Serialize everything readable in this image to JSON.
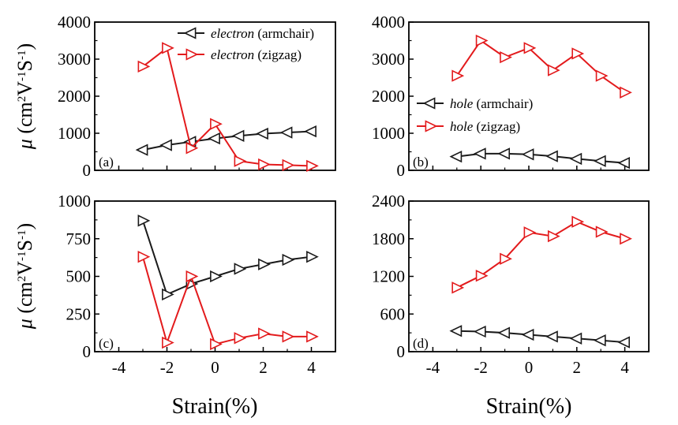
{
  "figure": {
    "ylabel_symbol": "μ",
    "ylabel_unit_open": " (cm",
    "ylabel_sup1": "2",
    "ylabel_mid": "V",
    "ylabel_sup2": "-1",
    "ylabel_end": "S",
    "ylabel_sup3": "-1",
    "ylabel_close": ")",
    "xlabel": "Strain(%)"
  },
  "colors": {
    "armchair": "#1a1a1a",
    "zigzag": "#e31a1c"
  },
  "chart_data": [
    {
      "type": "line",
      "panel_label": "(a)",
      "xlim": [
        -5,
        5
      ],
      "ylim": [
        0,
        4000
      ],
      "xticks": [
        -4,
        -2,
        0,
        2,
        4
      ],
      "yticks": [
        0,
        1000,
        2000,
        3000,
        4000
      ],
      "ytick_labels": [
        "0",
        "1000",
        "2000",
        "3000",
        "4000"
      ],
      "x_tick_labels_shown": false,
      "legend_position": "top-right",
      "series": [
        {
          "name_italic": "electron",
          "name_rest": " (armchair)",
          "color_key": "armchair",
          "marker": "triangle-left",
          "x": [
            -3,
            -2,
            -1,
            0,
            1,
            2,
            3,
            4
          ],
          "y": [
            550,
            680,
            770,
            860,
            930,
            990,
            1020,
            1050
          ]
        },
        {
          "name_italic": "electron",
          "name_rest": " (zigzag)",
          "color_key": "zigzag",
          "marker": "triangle-right",
          "x": [
            -3,
            -2,
            -1,
            0,
            1,
            2,
            3,
            4
          ],
          "y": [
            2800,
            3300,
            600,
            1250,
            250,
            160,
            140,
            120
          ]
        }
      ]
    },
    {
      "type": "line",
      "panel_label": "(b)",
      "xlim": [
        -5,
        5
      ],
      "ylim": [
        0,
        4000
      ],
      "xticks": [
        -4,
        -2,
        0,
        2,
        4
      ],
      "yticks": [
        0,
        1000,
        2000,
        3000,
        4000
      ],
      "ytick_labels": [
        "0",
        "1000",
        "2000",
        "3000",
        "4000"
      ],
      "x_tick_labels_shown": false,
      "legend_position": "center-left",
      "series": [
        {
          "name_italic": "hole",
          "name_rest": " (armchair)",
          "color_key": "armchair",
          "marker": "triangle-left",
          "x": [
            -3,
            -2,
            -1,
            0,
            1,
            2,
            3,
            4
          ],
          "y": [
            370,
            450,
            450,
            430,
            380,
            310,
            250,
            200
          ]
        },
        {
          "name_italic": "hole",
          "name_rest": " (zigzag)",
          "color_key": "zigzag",
          "marker": "triangle-right",
          "x": [
            -3,
            -2,
            -1,
            0,
            1,
            2,
            3,
            4
          ],
          "y": [
            2550,
            3500,
            3050,
            3300,
            2700,
            3150,
            2550,
            2100
          ]
        }
      ]
    },
    {
      "type": "line",
      "panel_label": "(c)",
      "xlim": [
        -5,
        5
      ],
      "ylim": [
        0,
        1000
      ],
      "xticks": [
        -4,
        -2,
        0,
        2,
        4
      ],
      "xtick_labels": [
        "-4",
        "-2",
        "0",
        "2",
        "4"
      ],
      "yticks": [
        0,
        250,
        500,
        750,
        1000
      ],
      "ytick_labels": [
        "0",
        "250",
        "500",
        "750",
        "1000"
      ],
      "x_tick_labels_shown": true,
      "series": [
        {
          "color_key": "armchair",
          "marker": "triangle-right",
          "x": [
            -3,
            -2,
            -1,
            0,
            1,
            2,
            3,
            4
          ],
          "y": [
            870,
            380,
            450,
            500,
            550,
            580,
            610,
            630
          ]
        },
        {
          "color_key": "zigzag",
          "marker": "triangle-right",
          "x": [
            -3,
            -2,
            -1,
            0,
            1,
            2,
            3,
            4
          ],
          "y": [
            630,
            60,
            500,
            50,
            90,
            120,
            100,
            100
          ]
        }
      ]
    },
    {
      "type": "line",
      "panel_label": "(d)",
      "xlim": [
        -5,
        5
      ],
      "ylim": [
        0,
        2400
      ],
      "xticks": [
        -4,
        -2,
        0,
        2,
        4
      ],
      "xtick_labels": [
        "-4",
        "-2",
        "0",
        "2",
        "4"
      ],
      "yticks": [
        0,
        600,
        1200,
        1800,
        2400
      ],
      "ytick_labels": [
        "0",
        "600",
        "1200",
        "1800",
        "2400"
      ],
      "x_tick_labels_shown": true,
      "series": [
        {
          "color_key": "armchair",
          "marker": "triangle-left",
          "x": [
            -3,
            -2,
            -1,
            0,
            1,
            2,
            3,
            4
          ],
          "y": [
            330,
            320,
            300,
            270,
            240,
            210,
            180,
            150
          ]
        },
        {
          "color_key": "zigzag",
          "marker": "triangle-right",
          "x": [
            -3,
            -2,
            -1,
            0,
            1,
            2,
            3,
            4
          ],
          "y": [
            1020,
            1210,
            1480,
            1900,
            1840,
            2070,
            1910,
            1800
          ]
        }
      ]
    }
  ]
}
